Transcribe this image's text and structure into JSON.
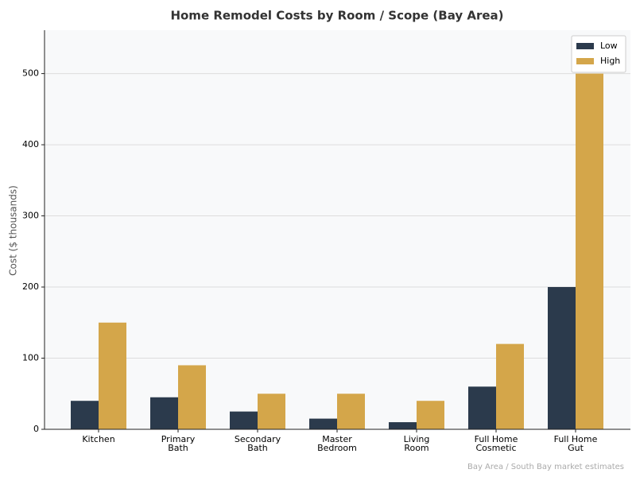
{
  "chart_data": {
    "type": "bar",
    "title": "Home Remodel Costs by Room / Scope (Bay Area)",
    "y_label": "Cost ($ thousands)",
    "note": "Bay Area / South Bay market estimates",
    "categories": [
      "Kitchen",
      "Primary\nBath",
      "Secondary\nBath",
      "Master\nBedroom",
      "Living\nRoom",
      "Full Home\nCosmetic",
      "Full Home\nGut"
    ],
    "series": [
      {
        "name": "Low",
        "color": "#2b3a4c",
        "values": [
          40,
          45,
          25,
          15,
          10,
          60,
          200
        ]
      },
      {
        "name": "High",
        "color": "#d4a64a",
        "values": [
          150,
          90,
          50,
          50,
          40,
          120,
          500
        ]
      }
    ],
    "ylim": [
      0,
      561
    ],
    "yticks": [
      0,
      100,
      200,
      300,
      400,
      500
    ],
    "grid": true,
    "legend": "upper right"
  }
}
